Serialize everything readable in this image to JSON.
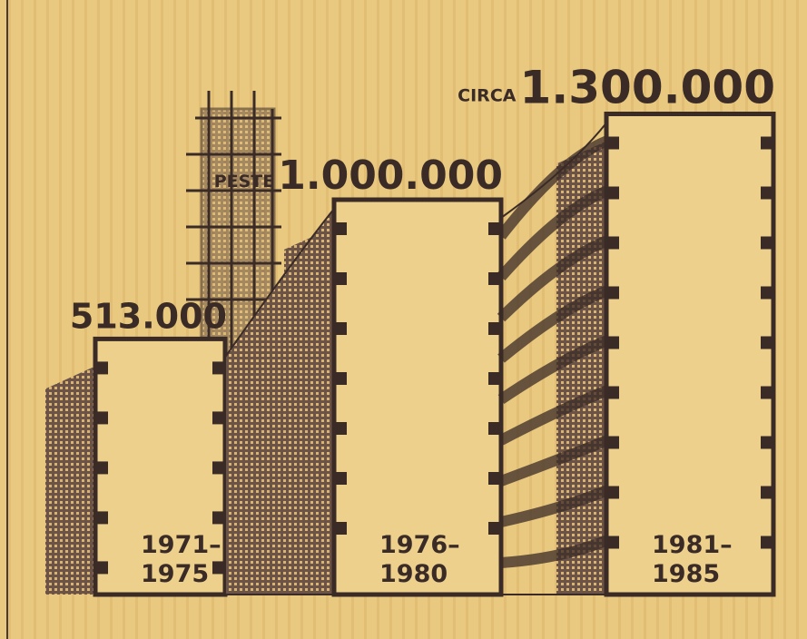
{
  "chart_data": {
    "type": "bar",
    "categories": [
      "1971–\n1975",
      "1976–\n1980",
      "1981–\n1985"
    ],
    "values": [
      513000,
      1000000,
      1300000
    ],
    "value_labels": [
      "513.000",
      "1.000.000",
      "1.300.000"
    ],
    "value_prefixes": [
      null,
      "PESTE",
      "CIRCA"
    ],
    "color": "#3b2b27"
  }
}
